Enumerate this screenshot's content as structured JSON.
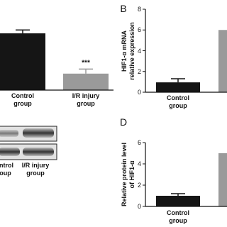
{
  "chart_data": [
    {
      "type": "bar",
      "categories": [
        "Control\ngroup",
        "I/R injury\ngroup"
      ],
      "values": [
        1,
        0.29
      ],
      "errors": [
        0.06,
        0.08
      ],
      "colors": [
        "#151515",
        "#9a9a9a"
      ],
      "annotation": "***"
    },
    {
      "type": "bar",
      "label": "B",
      "y_label": "HIF1-α mRNA\nrelative expression",
      "categories": [
        "Control\ngroup",
        null
      ],
      "values": [
        0.95,
        6
      ],
      "errors": [
        0.35,
        0
      ],
      "colors": [
        "#151515",
        "#9a9a9a"
      ],
      "ylim": [
        0,
        8
      ],
      "yticks": [
        0,
        2,
        4,
        6,
        8
      ]
    },
    {
      "type": "bar",
      "label": "D",
      "y_label": "Relative protein level\nof HIF1-α",
      "categories": [
        "Control\ngroup",
        null
      ],
      "values": [
        1,
        5
      ],
      "errors": [
        0.2,
        0
      ],
      "colors": [
        "#151515",
        "#9a9a9a"
      ],
      "ylim": [
        0,
        6
      ],
      "yticks": [
        0,
        2,
        4,
        6
      ]
    }
  ],
  "blot": {
    "lanes": [
      "Control\ngroup",
      "I/R injury\ngroup"
    ]
  }
}
